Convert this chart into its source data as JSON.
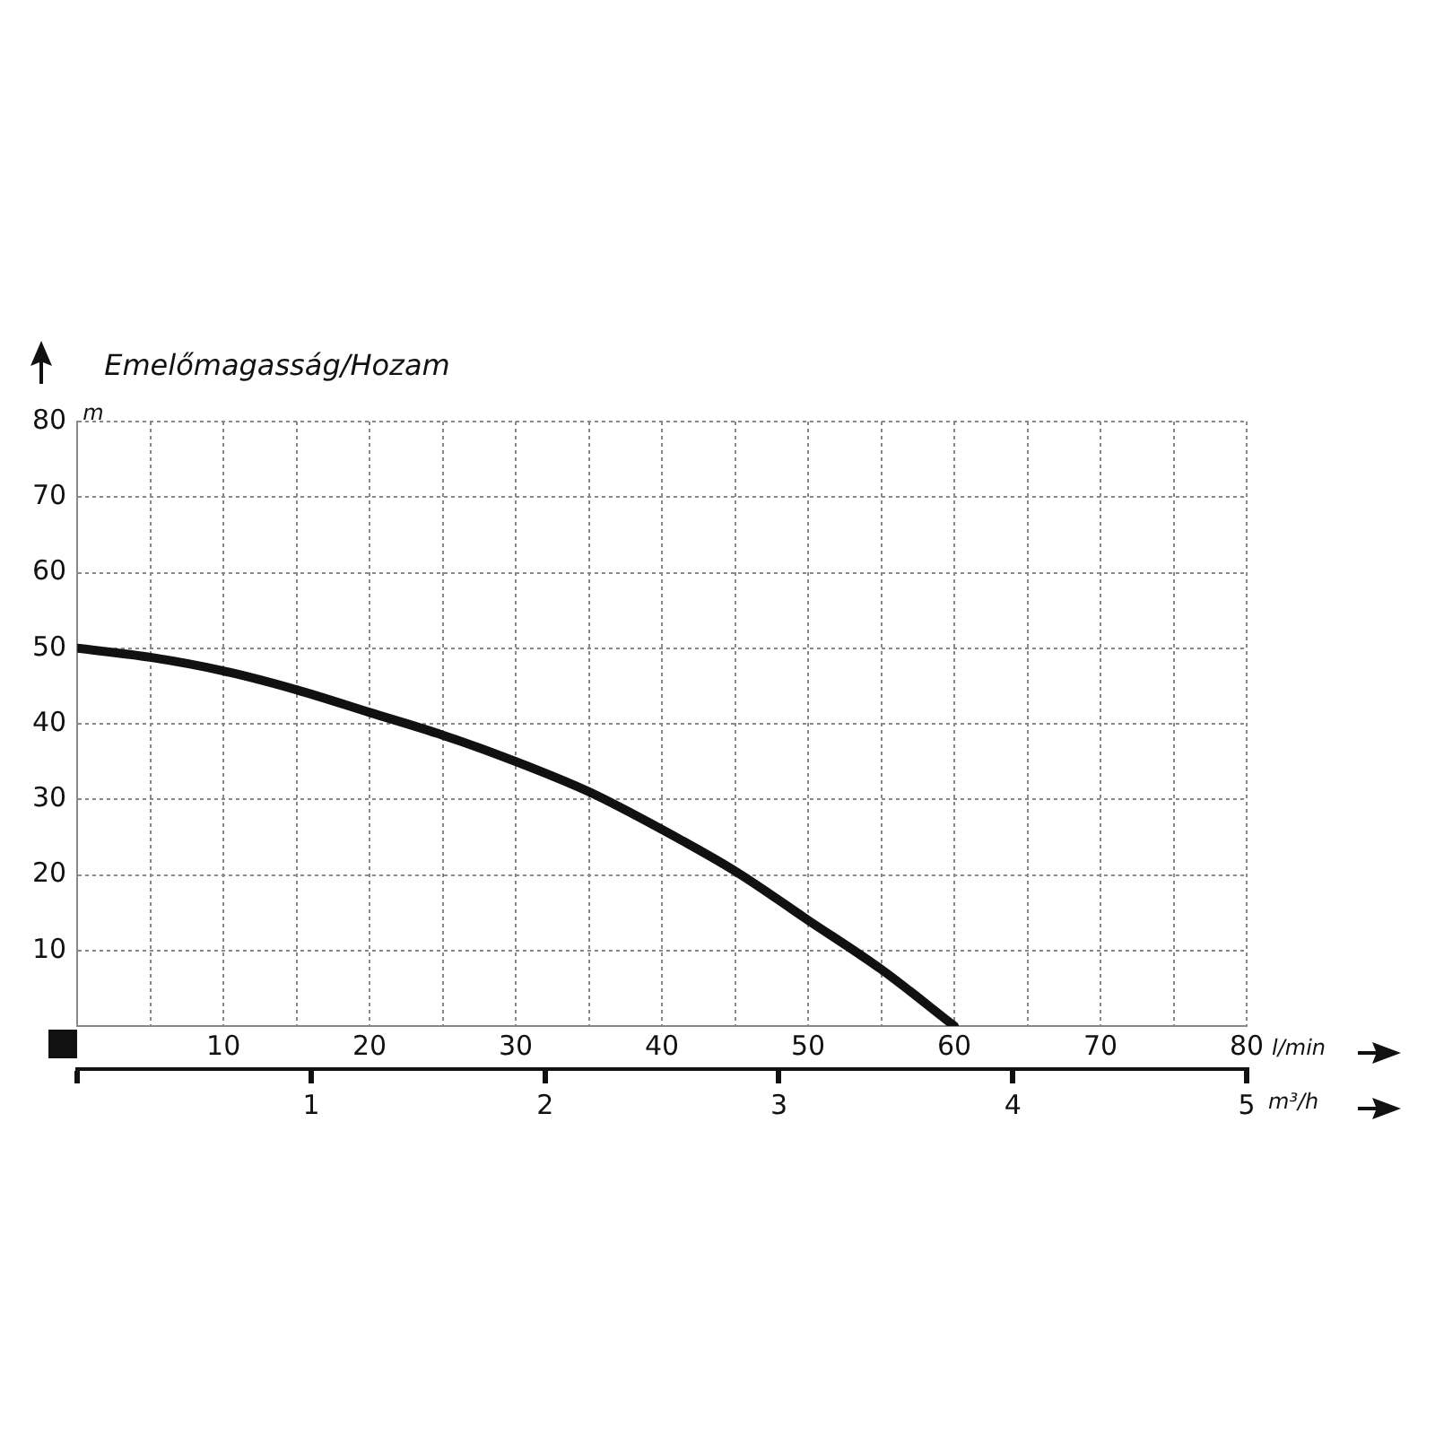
{
  "chart_data": {
    "type": "line",
    "title": "Emelőmagasság/Hozam",
    "xlabel": "l/min",
    "ylabel": "m",
    "x2label": "m³/h",
    "x": [
      0,
      5,
      10,
      15,
      20,
      25,
      30,
      35,
      40,
      45,
      50,
      55,
      60
    ],
    "series": [
      {
        "color": "#111111",
        "values": [
          50,
          48.8,
          47,
          44.5,
          41.5,
          38.5,
          35,
          31,
          26,
          20.5,
          14,
          7.5,
          0
        ]
      }
    ],
    "xlim": [
      0,
      80
    ],
    "xticks": [
      {
        "value": 0,
        "label": null
      },
      {
        "value": 5,
        "label": null
      },
      10,
      {
        "value": 15,
        "label": null
      },
      20,
      {
        "value": 25,
        "label": null
      },
      30,
      {
        "value": 35,
        "label": null
      },
      40,
      {
        "value": 45,
        "label": null
      },
      50,
      {
        "value": 55,
        "label": null
      },
      60,
      {
        "value": 65,
        "label": null
      },
      70,
      {
        "value": 75,
        "label": null
      },
      80
    ],
    "ylim": [
      0,
      80
    ],
    "yticks": [
      {
        "value": 0,
        "label": null
      },
      10,
      20,
      30,
      40,
      50,
      60,
      70,
      80
    ],
    "x2lim": [
      0,
      5
    ],
    "x2ticks": [
      {
        "value": 0,
        "label": null
      },
      1,
      2,
      3,
      4,
      5
    ],
    "grid": true,
    "legend": false,
    "marker": "none",
    "line_style": "solid"
  }
}
